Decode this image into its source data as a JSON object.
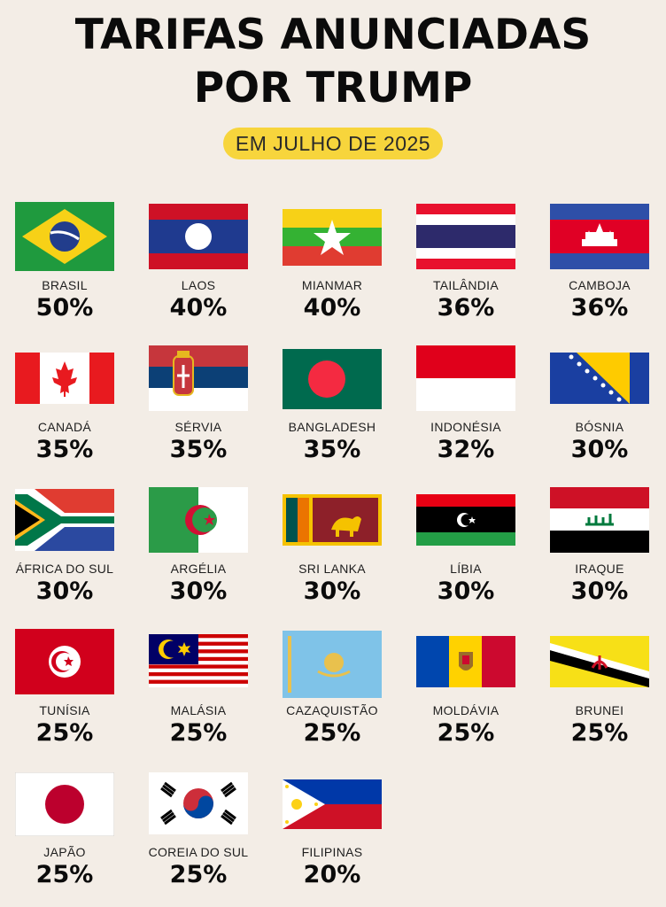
{
  "header": {
    "title_line1": "TARIFAS ANUNCIADAS",
    "title_line2": "POR TRUMP",
    "subtitle": "EM JULHO DE 2025",
    "accent_color": "#f7d53c"
  },
  "countries": [
    {
      "name": "BRASIL",
      "rate": "50%",
      "icon": "brazil-flag"
    },
    {
      "name": "LAOS",
      "rate": "40%",
      "icon": "laos-flag"
    },
    {
      "name": "MIANMAR",
      "rate": "40%",
      "icon": "myanmar-flag"
    },
    {
      "name": "TAILÂNDIA",
      "rate": "36%",
      "icon": "thailand-flag"
    },
    {
      "name": "CAMBOJA",
      "rate": "36%",
      "icon": "cambodia-flag"
    },
    {
      "name": "CANADÁ",
      "rate": "35%",
      "icon": "canada-flag"
    },
    {
      "name": "SÉRVIA",
      "rate": "35%",
      "icon": "serbia-flag"
    },
    {
      "name": "BANGLADESH",
      "rate": "35%",
      "icon": "bangladesh-flag"
    },
    {
      "name": "INDONÉSIA",
      "rate": "32%",
      "icon": "indonesia-flag"
    },
    {
      "name": "BÓSNIA",
      "rate": "30%",
      "icon": "bosnia-flag"
    },
    {
      "name": "ÁFRICA DO SUL",
      "rate": "30%",
      "icon": "south-africa-flag"
    },
    {
      "name": "ARGÉLIA",
      "rate": "30%",
      "icon": "algeria-flag"
    },
    {
      "name": "SRI LANKA",
      "rate": "30%",
      "icon": "sri-lanka-flag"
    },
    {
      "name": "LÍBIA",
      "rate": "30%",
      "icon": "libya-flag"
    },
    {
      "name": "IRAQUE",
      "rate": "30%",
      "icon": "iraq-flag"
    },
    {
      "name": "TUNÍSIA",
      "rate": "25%",
      "icon": "tunisia-flag"
    },
    {
      "name": "MALÁSIA",
      "rate": "25%",
      "icon": "malaysia-flag"
    },
    {
      "name": "CAZAQUISTÃO",
      "rate": "25%",
      "icon": "kazakhstan-flag"
    },
    {
      "name": "MOLDÁVIA",
      "rate": "25%",
      "icon": "moldova-flag"
    },
    {
      "name": "BRUNEI",
      "rate": "25%",
      "icon": "brunei-flag"
    },
    {
      "name": "JAPÃO",
      "rate": "25%",
      "icon": "japan-flag"
    },
    {
      "name": "COREIA DO SUL",
      "rate": "25%",
      "icon": "south-korea-flag"
    },
    {
      "name": "FILIPINAS",
      "rate": "20%",
      "icon": "philippines-flag"
    }
  ]
}
